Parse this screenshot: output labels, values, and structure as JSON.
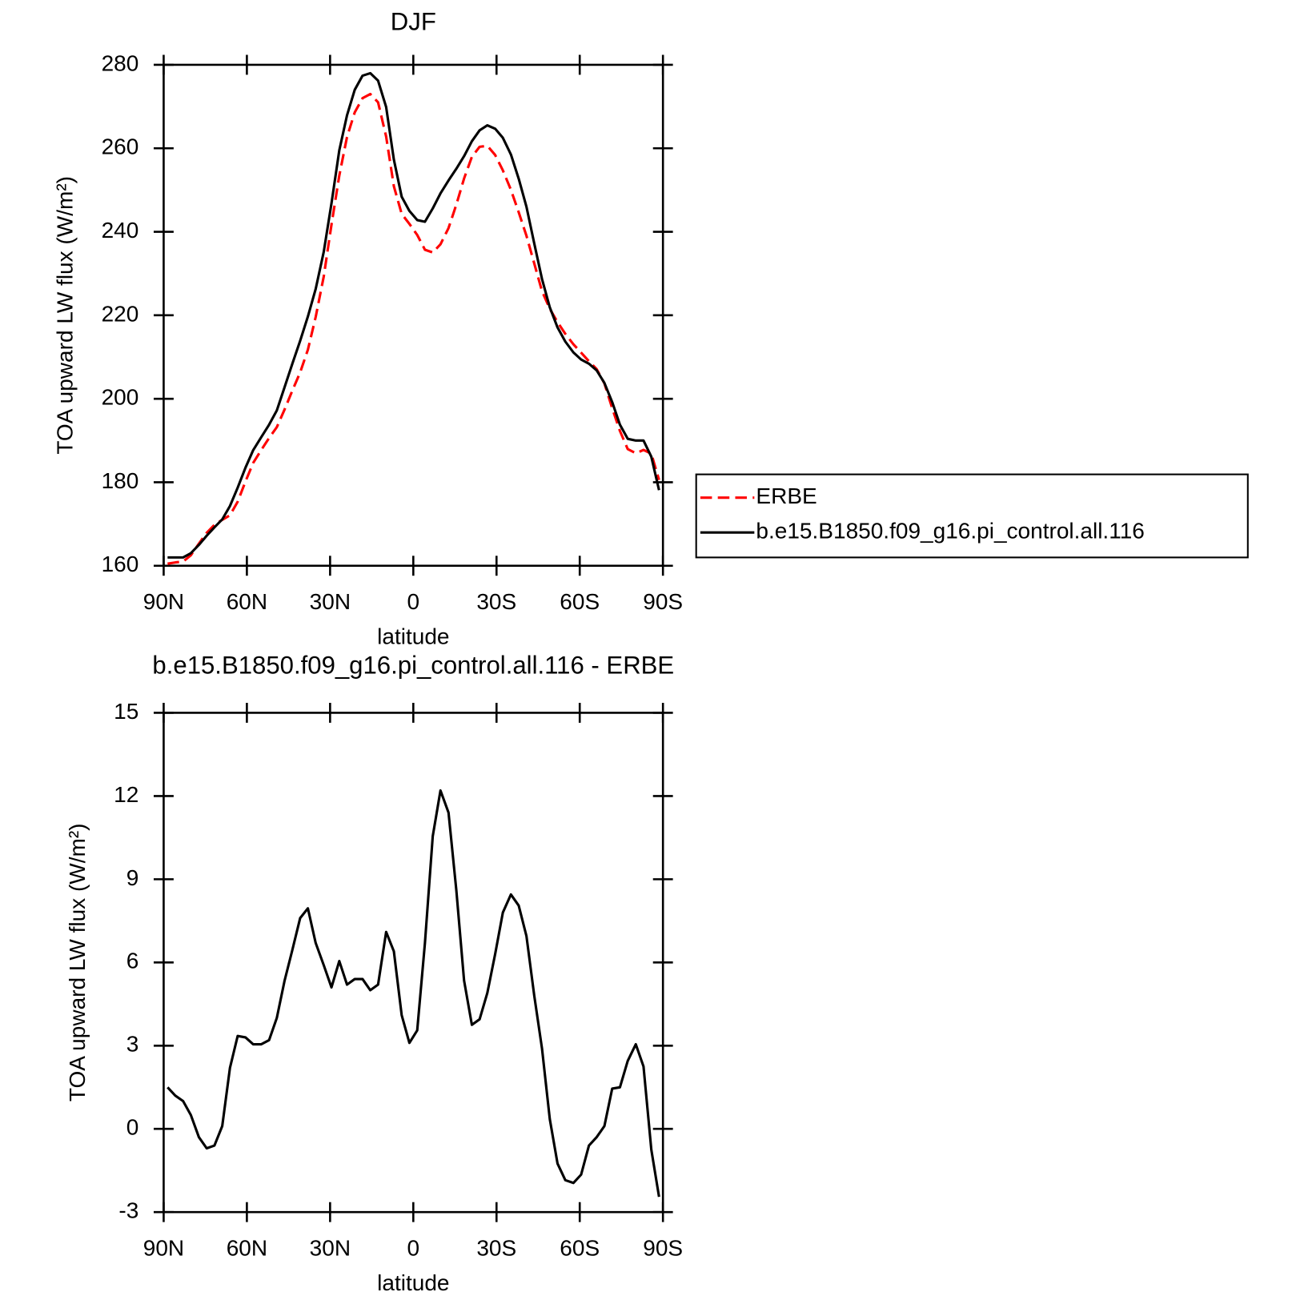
{
  "chart_data": [
    {
      "type": "line",
      "title": "DJF",
      "xlabel": "latitude",
      "ylabel": "TOA upward LW flux (W/m²)",
      "x": [
        88.6,
        85.8,
        83.0,
        80.2,
        77.3,
        74.5,
        71.7,
        68.9,
        66.1,
        63.3,
        60.5,
        57.7,
        54.8,
        52.0,
        49.2,
        46.4,
        43.6,
        40.8,
        38.0,
        35.2,
        32.3,
        29.5,
        26.7,
        23.9,
        21.1,
        18.3,
        15.5,
        12.7,
        9.8,
        7.0,
        4.2,
        1.4,
        -1.4,
        -4.2,
        -7.0,
        -9.8,
        -12.7,
        -15.5,
        -18.3,
        -21.1,
        -23.9,
        -26.7,
        -29.5,
        -32.3,
        -35.2,
        -38.0,
        -40.8,
        -43.6,
        -46.4,
        -49.2,
        -52.0,
        -54.8,
        -57.7,
        -60.5,
        -63.3,
        -66.1,
        -68.9,
        -71.7,
        -74.5,
        -77.3,
        -80.2,
        -83.0,
        -85.8,
        -88.6
      ],
      "series": [
        {
          "name": "ERBE",
          "color": "#ff0000",
          "dash": true,
          "values": [
            160.5,
            160.8,
            161.0,
            162.5,
            165.3,
            167.9,
            169.8,
            171.0,
            172.1,
            175.35,
            180.2,
            184.65,
            187.75,
            190.6,
            193.2,
            197.45,
            201.95,
            206.3,
            211.75,
            219.6,
            229.3,
            241.7,
            253.45,
            262.7,
            268.6,
            272.0,
            273.0,
            271.0,
            262.8,
            250.9,
            244.3,
            241.9,
            239.25,
            235.7,
            235.05,
            237.0,
            240.9,
            246.5,
            252.75,
            257.95,
            260.35,
            260.6,
            258.4,
            254.7,
            250.05,
            244.65,
            239.05,
            232.4,
            225.8,
            221.55,
            218.35,
            215.55,
            213.05,
            211.05,
            209.0,
            207.1,
            203.7,
            197.75,
            192.3,
            187.95,
            186.95,
            187.75,
            186.85,
            180.55
          ]
        },
        {
          "name": "b.e15.B1850.f09_g16.pi_control.all.116",
          "color": "#000000",
          "dash": false,
          "values": [
            162.0,
            162.0,
            162.0,
            163.0,
            165.0,
            167.2,
            169.2,
            171.1,
            174.3,
            178.7,
            183.5,
            187.7,
            190.8,
            193.8,
            197.2,
            202.8,
            208.4,
            213.9,
            219.7,
            226.3,
            235.2,
            246.8,
            259.5,
            267.9,
            274.0,
            277.4,
            278.0,
            276.2,
            269.9,
            257.3,
            248.4,
            245.0,
            242.8,
            242.4,
            245.6,
            249.2,
            252.3,
            255.1,
            258.1,
            261.7,
            264.3,
            265.5,
            264.7,
            262.5,
            258.5,
            252.7,
            246.0,
            237.2,
            228.7,
            221.9,
            217.1,
            213.7,
            211.1,
            209.4,
            208.4,
            206.8,
            203.8,
            199.2,
            193.8,
            190.4,
            190.0,
            190.0,
            186.1,
            178.1
          ]
        }
      ],
      "xlim": [
        90,
        -90
      ],
      "xticks": [
        {
          "value": 90,
          "label": "90N"
        },
        {
          "value": 60,
          "label": "60N"
        },
        {
          "value": 30,
          "label": "30N"
        },
        0,
        {
          "value": -30,
          "label": "30S"
        },
        {
          "value": -60,
          "label": "60S"
        },
        {
          "value": -90,
          "label": "90S"
        }
      ],
      "ylim": [
        160,
        280
      ],
      "yticks": [
        160,
        180,
        200,
        220,
        240,
        260,
        280
      ],
      "legend": "outside-right"
    },
    {
      "type": "line",
      "title": "b.e15.B1850.f09_g16.pi_control.all.116 - ERBE",
      "xlabel": "latitude",
      "ylabel": "TOA upward LW flux (W/m²)",
      "x": [
        88.6,
        85.8,
        83.0,
        80.2,
        77.3,
        74.5,
        71.7,
        68.9,
        66.1,
        63.3,
        60.5,
        57.7,
        54.8,
        52.0,
        49.2,
        46.4,
        43.6,
        40.8,
        38.0,
        35.2,
        32.3,
        29.5,
        26.7,
        23.9,
        21.1,
        18.3,
        15.5,
        12.7,
        9.8,
        7.0,
        4.2,
        1.4,
        -1.4,
        -4.2,
        -7.0,
        -9.8,
        -12.7,
        -15.5,
        -18.3,
        -21.1,
        -23.9,
        -26.7,
        -29.5,
        -32.3,
        -35.2,
        -38.0,
        -40.8,
        -43.6,
        -46.4,
        -49.2,
        -52.0,
        -54.8,
        -57.7,
        -60.5,
        -63.3,
        -66.1,
        -68.9,
        -71.7,
        -74.5,
        -77.3,
        -80.2,
        -83.0,
        -85.8,
        -88.6
      ],
      "values": [
        1.5,
        1.2,
        1.0,
        0.5,
        -0.3,
        -0.7,
        -0.6,
        0.1,
        2.2,
        3.35,
        3.3,
        3.05,
        3.05,
        3.2,
        4.0,
        5.35,
        6.45,
        7.6,
        7.95,
        6.7,
        5.9,
        5.1,
        6.05,
        5.2,
        5.4,
        5.4,
        5.0,
        5.2,
        7.1,
        6.4,
        4.1,
        3.1,
        3.55,
        6.7,
        10.55,
        12.2,
        11.4,
        8.6,
        5.35,
        3.75,
        3.95,
        4.9,
        6.3,
        7.8,
        8.45,
        8.05,
        6.95,
        4.8,
        2.9,
        0.35,
        -1.25,
        -1.85,
        -1.95,
        -1.65,
        -0.6,
        -0.3,
        0.1,
        1.45,
        1.5,
        2.45,
        3.05,
        2.25,
        -0.75,
        -2.45
      ],
      "color": "#000000",
      "xlim": [
        90,
        -90
      ],
      "xticks": [
        {
          "value": 90,
          "label": "90N"
        },
        {
          "value": 60,
          "label": "60N"
        },
        {
          "value": 30,
          "label": "30N"
        },
        0,
        {
          "value": -30,
          "label": "30S"
        },
        {
          "value": -60,
          "label": "60S"
        },
        {
          "value": -90,
          "label": "90S"
        }
      ],
      "ylim": [
        -3,
        15
      ],
      "yticks": [
        -3,
        0,
        3,
        6,
        9,
        12,
        15
      ]
    }
  ]
}
